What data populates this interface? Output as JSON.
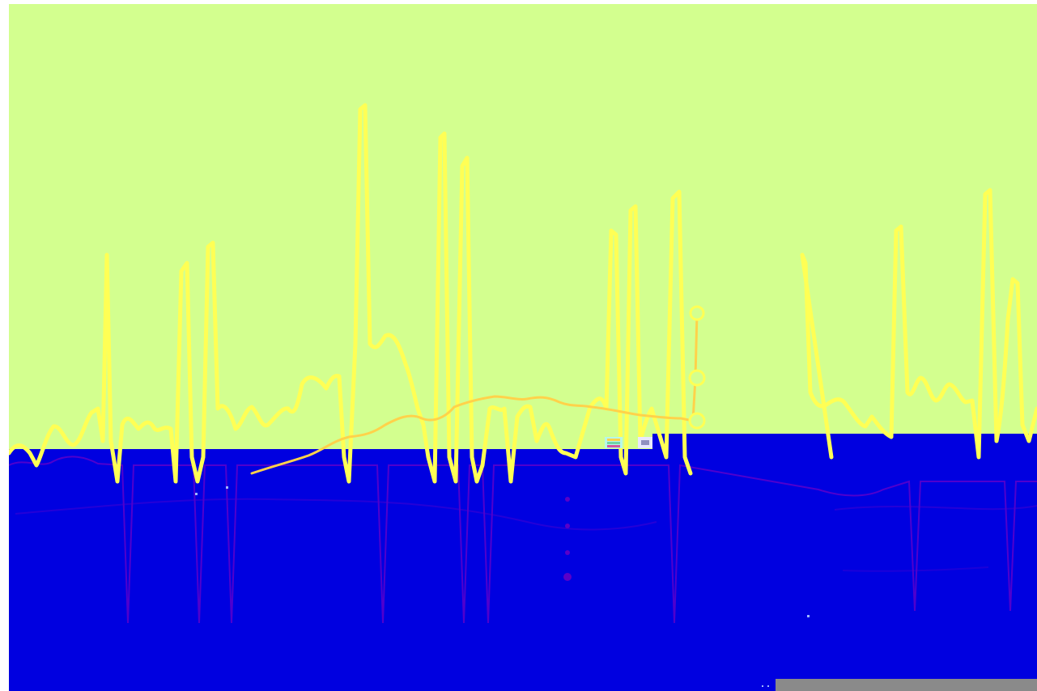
{
  "colors": {
    "background_top": "#d3ff8f",
    "background_bottom": "#0000e0",
    "trace_primary": "#ffff55",
    "trace_secondary": "#ffd24a",
    "trace_shadow": "#6a00c8",
    "bar_gray": "#8a8a8a",
    "header_strip": "#b7f7e8"
  },
  "icons": {
    "marker_1": "dot-marker",
    "marker_2": "ring-marker",
    "marker_3": "ring-marker",
    "handle_top": "ring-marker",
    "handle_mid": "ring-marker",
    "handle_low": "ring-marker"
  }
}
